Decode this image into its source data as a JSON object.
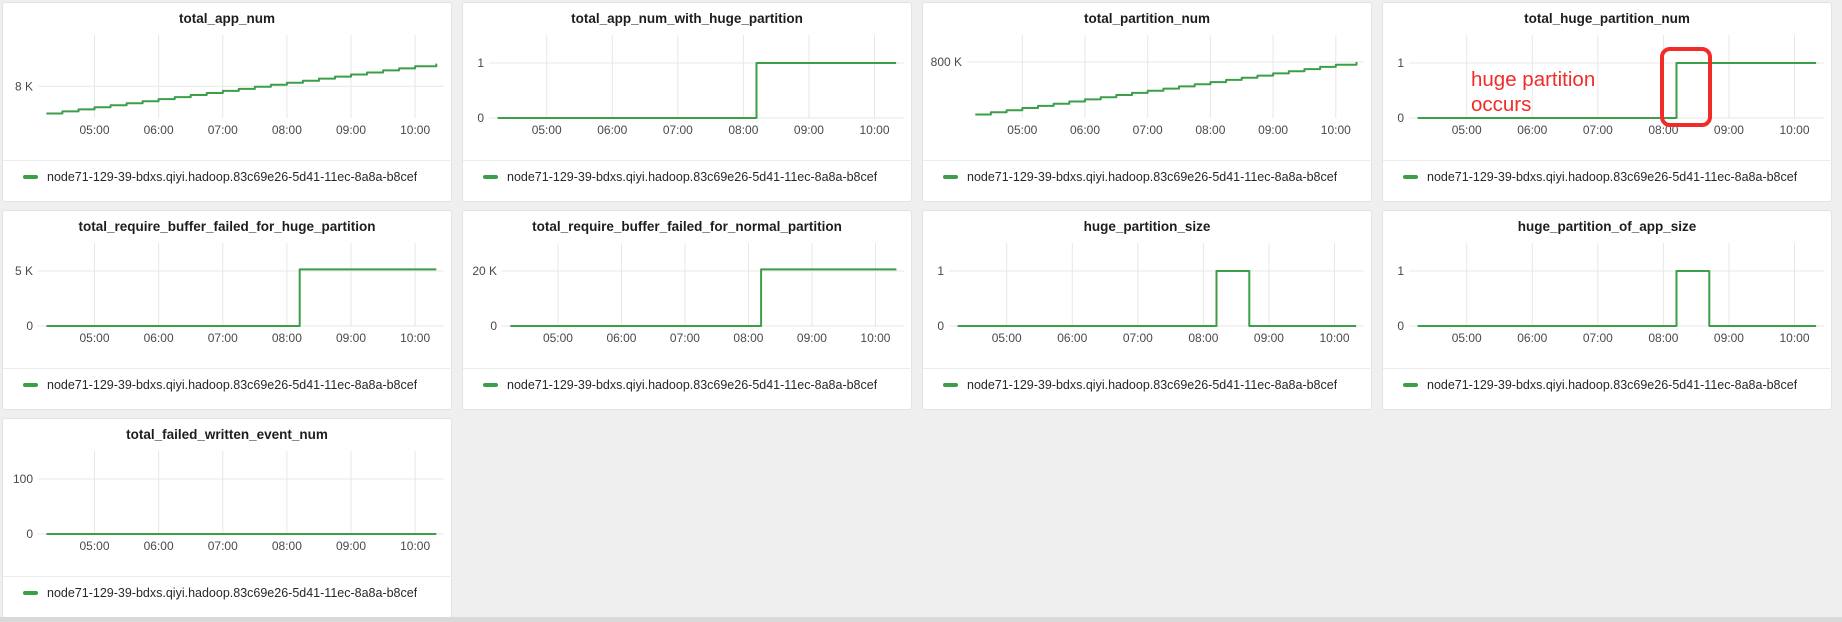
{
  "page": {
    "background": "#efefef"
  },
  "colors": {
    "series_green": "#3c9e48",
    "annotation_red": "#f12c28",
    "gridline": "#e7e7e7",
    "panel_border": "#e3e3e3",
    "title_text": "#1b1e21",
    "tick_text": "#47494e",
    "legend_text": "#25292e",
    "panel_background": "#ffffff"
  },
  "x_axis": {
    "xlim": [
      4.15,
      10.45
    ],
    "ticks": [
      {
        "v": 5,
        "label": "05:00"
      },
      {
        "v": 6,
        "label": "06:00"
      },
      {
        "v": 7,
        "label": "07:00"
      },
      {
        "v": 8,
        "label": "08:00"
      },
      {
        "v": 9,
        "label": "09:00"
      },
      {
        "v": 10,
        "label": "10:00"
      }
    ]
  },
  "chart_data": [
    {
      "type": "line",
      "title": "total_app_num",
      "ylim": [
        7300,
        9000
      ],
      "draw": "steps",
      "y_ticks": [
        {
          "v": 8000,
          "label": "8 K"
        }
      ],
      "points": [
        [
          4.25,
          7400
        ],
        [
          4.5,
          7445
        ],
        [
          4.75,
          7490
        ],
        [
          5,
          7536
        ],
        [
          5.25,
          7581
        ],
        [
          5.5,
          7626
        ],
        [
          5.75,
          7671
        ],
        [
          6,
          7717
        ],
        [
          6.25,
          7762
        ],
        [
          6.5,
          7807
        ],
        [
          6.75,
          7852
        ],
        [
          7,
          7898
        ],
        [
          7.25,
          7943
        ],
        [
          7.5,
          7988
        ],
        [
          7.75,
          8033
        ],
        [
          8,
          8079
        ],
        [
          8.25,
          8124
        ],
        [
          8.5,
          8169
        ],
        [
          8.75,
          8214
        ],
        [
          9,
          8260
        ],
        [
          9.25,
          8305
        ],
        [
          9.5,
          8350
        ],
        [
          9.75,
          8395
        ],
        [
          10,
          8441
        ],
        [
          10.33,
          8500
        ]
      ],
      "legend": "node71-129-39-bdxs.qiyi.hadoop.83c69e26-5d41-11ec-8a8a-b8cef"
    },
    {
      "type": "line",
      "title": "total_app_num_with_huge_partition",
      "ylim": [
        0,
        1.4
      ],
      "draw": "linear",
      "y_ticks": [
        {
          "v": 0,
          "label": "0"
        },
        {
          "v": 1,
          "label": "1"
        }
      ],
      "points": [
        [
          4.25,
          0
        ],
        [
          8.2,
          0
        ],
        [
          8.2,
          1
        ],
        [
          10.33,
          1
        ]
      ],
      "legend": "node71-129-39-bdxs.qiyi.hadoop.83c69e26-5d41-11ec-8a8a-b8cef"
    },
    {
      "type": "line",
      "title": "total_partition_num",
      "ylim": [
        640000,
        860000
      ],
      "draw": "steps",
      "y_ticks": [
        {
          "v": 800000,
          "label": "800 K"
        }
      ],
      "points": [
        [
          4.25,
          650000
        ],
        [
          4.5,
          656200
        ],
        [
          4.75,
          662400
        ],
        [
          5,
          668500
        ],
        [
          5.25,
          674700
        ],
        [
          5.5,
          680900
        ],
        [
          5.75,
          687100
        ],
        [
          6,
          693200
        ],
        [
          6.25,
          699400
        ],
        [
          6.5,
          705600
        ],
        [
          6.75,
          711800
        ],
        [
          7,
          717900
        ],
        [
          7.25,
          724100
        ],
        [
          7.5,
          730300
        ],
        [
          7.75,
          736500
        ],
        [
          8,
          742600
        ],
        [
          8.25,
          748800
        ],
        [
          8.5,
          755000
        ],
        [
          8.75,
          761200
        ],
        [
          9,
          767300
        ],
        [
          9.25,
          773500
        ],
        [
          9.5,
          779700
        ],
        [
          9.75,
          785900
        ],
        [
          10,
          792000
        ],
        [
          10.33,
          800000
        ]
      ],
      "legend": "node71-129-39-bdxs.qiyi.hadoop.83c69e26-5d41-11ec-8a8a-b8cef"
    },
    {
      "type": "line",
      "title": "total_huge_partition_num",
      "ylim": [
        0,
        1.4
      ],
      "draw": "linear",
      "y_ticks": [
        {
          "v": 0,
          "label": "0"
        },
        {
          "v": 1,
          "label": "1"
        }
      ],
      "points": [
        [
          4.25,
          0
        ],
        [
          8.2,
          0
        ],
        [
          8.2,
          1
        ],
        [
          10.33,
          1
        ]
      ],
      "legend": "node71-129-39-bdxs.qiyi.hadoop.83c69e26-5d41-11ec-8a8a-b8cef",
      "annotation": {
        "text": "huge partition occurs",
        "highlight_x_from": 7.95,
        "highlight_x_to": 8.75
      }
    },
    {
      "type": "line",
      "title": "total_require_buffer_failed_for_huge_partition",
      "ylim": [
        0,
        7000
      ],
      "draw": "linear",
      "y_ticks": [
        {
          "v": 0,
          "label": "0"
        },
        {
          "v": 5000,
          "label": "5 K"
        }
      ],
      "points": [
        [
          4.25,
          0
        ],
        [
          8.2,
          0
        ],
        [
          8.2,
          5150
        ],
        [
          10.33,
          5150
        ]
      ],
      "legend": "node71-129-39-bdxs.qiyi.hadoop.83c69e26-5d41-11ec-8a8a-b8cef"
    },
    {
      "type": "line",
      "title": "total_require_buffer_failed_for_normal_partition",
      "ylim": [
        0,
        28000
      ],
      "draw": "linear",
      "y_ticks": [
        {
          "v": 0,
          "label": "0"
        },
        {
          "v": 20000,
          "label": "20 K"
        }
      ],
      "points": [
        [
          4.25,
          0
        ],
        [
          8.2,
          0
        ],
        [
          8.2,
          20600
        ],
        [
          10.33,
          20600
        ]
      ],
      "legend": "node71-129-39-bdxs.qiyi.hadoop.83c69e26-5d41-11ec-8a8a-b8cef"
    },
    {
      "type": "line",
      "title": "huge_partition_size",
      "ylim": [
        0,
        1.4
      ],
      "draw": "linear",
      "y_ticks": [
        {
          "v": 0,
          "label": "0"
        },
        {
          "v": 1,
          "label": "1"
        }
      ],
      "points": [
        [
          4.25,
          0
        ],
        [
          8.2,
          0
        ],
        [
          8.2,
          1
        ],
        [
          8.7,
          1
        ],
        [
          8.7,
          0
        ],
        [
          10.33,
          0
        ]
      ],
      "legend": "node71-129-39-bdxs.qiyi.hadoop.83c69e26-5d41-11ec-8a8a-b8cef"
    },
    {
      "type": "line",
      "title": "huge_partition_of_app_size",
      "ylim": [
        0,
        1.4
      ],
      "draw": "linear",
      "y_ticks": [
        {
          "v": 0,
          "label": "0"
        },
        {
          "v": 1,
          "label": "1"
        }
      ],
      "points": [
        [
          4.25,
          0
        ],
        [
          8.2,
          0
        ],
        [
          8.2,
          1
        ],
        [
          8.7,
          1
        ],
        [
          8.7,
          0
        ],
        [
          10.33,
          0
        ]
      ],
      "legend": "node71-129-39-bdxs.qiyi.hadoop.83c69e26-5d41-11ec-8a8a-b8cef"
    },
    {
      "type": "line",
      "title": "total_failed_written_event_num",
      "ylim": [
        0,
        140
      ],
      "draw": "linear",
      "y_ticks": [
        {
          "v": 0,
          "label": "0"
        },
        {
          "v": 100,
          "label": "100"
        }
      ],
      "points": [
        [
          4.25,
          0
        ],
        [
          10.33,
          0
        ]
      ],
      "legend": "node71-129-39-bdxs.qiyi.hadoop.83c69e26-5d41-11ec-8a8a-b8cef"
    }
  ]
}
